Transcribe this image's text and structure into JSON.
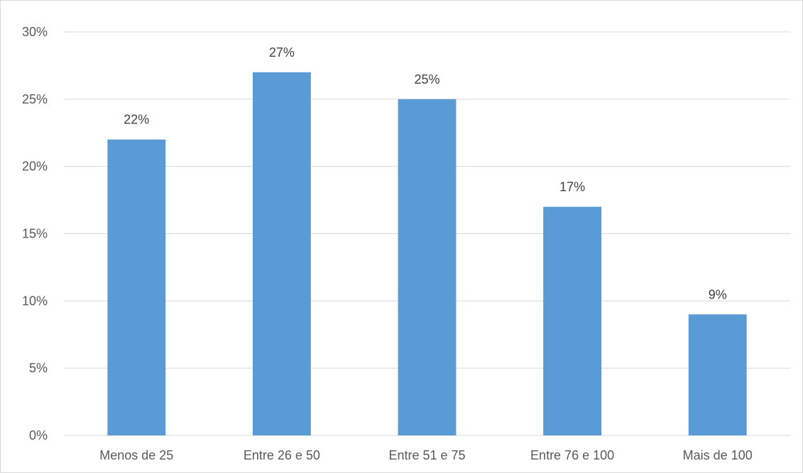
{
  "chart_data": {
    "type": "bar",
    "categories": [
      "Menos de 25",
      "Entre 26 e 50",
      "Entre 51 e 75",
      "Entre 76 e 100",
      "Mais de 100"
    ],
    "values": [
      22,
      27,
      25,
      17,
      9
    ],
    "data_labels": [
      "22%",
      "27%",
      "25%",
      "17%",
      "9%"
    ],
    "y_ticks": [
      0,
      5,
      10,
      15,
      20,
      25,
      30
    ],
    "y_tick_labels": [
      "0%",
      "5%",
      "10%",
      "15%",
      "20%",
      "25%",
      "30%"
    ],
    "ylim": [
      0,
      30
    ],
    "grid": true,
    "legend": "none",
    "title": "",
    "xlabel": "",
    "ylabel": "",
    "bar_color": "#5b9bd5"
  }
}
